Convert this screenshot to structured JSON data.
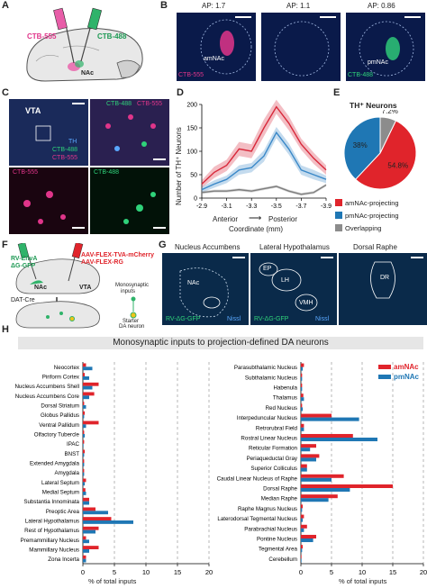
{
  "panels": {
    "A": "A",
    "B": "B",
    "C": "C",
    "D": "D",
    "E": "E",
    "F": "F",
    "G": "G",
    "H": "H"
  },
  "panelA": {
    "ctb555": "CTB-555",
    "ctb488": "CTB-488",
    "nac": "NAc"
  },
  "panelB": {
    "titles": [
      "AP: 1.7",
      "AP: 1.1",
      "AP: 0.86"
    ],
    "labels": [
      "amNAc",
      "pmNAc"
    ],
    "tags": [
      "CTB-555",
      "CTB-488"
    ]
  },
  "panelC": {
    "vta": "VTA",
    "th": "TH",
    "ctb488": "CTB-488",
    "ctb555": "CTB-555",
    "sub1": "CTB-555",
    "sub2": "CTB-488",
    "topright1": "CTB-488",
    "topright2": "CTB-555"
  },
  "panelD": {
    "ylabel": "Number of TH⁺ Neurons",
    "xlabel_line1": "Anterior",
    "xlabel_arrow": "⟶",
    "xlabel_line2": "Posterior",
    "xlabel_line3": "Coordinate (mm)"
  },
  "panelE": {
    "title": "TH⁺ Neurons",
    "legend": [
      "amNAc-projecting",
      "pmNAc-projecting",
      "Overlapping"
    ]
  },
  "panelF": {
    "left1": "RV-EnvA",
    "left2": "ΔG-GFP",
    "right1": "AAV-FLEX-TVA-mCherry",
    "right2": "AAV-FLEX-RG",
    "nac": "NAc",
    "vta": "VTA",
    "datcre": "DAT-Cre",
    "mono1": "Monosynaptic",
    "mono2": "inputs",
    "starter1": "Starter",
    "starter2": "DA neuron"
  },
  "panelG": {
    "titles": [
      "Nucleus Accumbens",
      "Lateral Hypothalamus",
      "Dorsal Raphe"
    ],
    "regions": [
      "NAc",
      "EP",
      "LH",
      "VMH",
      "DR"
    ],
    "gfp": "RV-ΔG-GFP",
    "nissl": "Nissl"
  },
  "panelH": {
    "title": "Monosynaptic inputs to projection-defined DA neurons",
    "xlabel": "% of total inputs",
    "legend": [
      "amNAc",
      "pmNAc"
    ]
  },
  "colors": {
    "amNAc": "#e0242b",
    "pmNAc": "#1f77b4",
    "overlap": "#8c8c8c"
  },
  "chart_data": [
    {
      "type": "line",
      "panel": "D",
      "ylabel": "Number of TH⁺ Neurons",
      "xlabel": "Coordinate (mm)",
      "x": [
        -2.9,
        -3.0,
        -3.1,
        -3.2,
        -3.3,
        -3.4,
        -3.5,
        -3.6,
        -3.7,
        -3.8,
        -3.9
      ],
      "xticks": [
        "-2.9",
        "-3.1",
        "-3.3",
        "-3.5",
        "-3.7",
        "-3.9"
      ],
      "yticks": [
        0,
        50,
        100,
        150,
        200
      ],
      "ylim": [
        0,
        200
      ],
      "series": [
        {
          "values": [
            30,
            55,
            70,
            105,
            100,
            150,
            195,
            160,
            115,
            85,
            60
          ],
          "color": "#d8283a",
          "band": [
            8,
            12,
            12,
            15,
            15,
            18,
            15,
            15,
            12,
            12,
            10
          ]
        },
        {
          "values": [
            18,
            30,
            40,
            60,
            65,
            90,
            140,
            105,
            60,
            50,
            40
          ],
          "color": "#3a88c8",
          "band": [
            6,
            8,
            8,
            10,
            10,
            12,
            12,
            12,
            10,
            10,
            8
          ]
        },
        {
          "values": [
            12,
            15,
            15,
            18,
            15,
            20,
            25,
            15,
            8,
            12,
            28
          ],
          "color": "#7d7d7d",
          "band": [
            3,
            3,
            3,
            3,
            3,
            3,
            3,
            3,
            3,
            3,
            3
          ]
        }
      ]
    },
    {
      "type": "pie",
      "panel": "E",
      "slices": [
        {
          "name": "amNAc-projecting",
          "value": 54.8,
          "label": "54.8%",
          "color": "#e0242b"
        },
        {
          "name": "pmNAc-projecting",
          "value": 38,
          "label": "38%",
          "color": "#1f77b4"
        },
        {
          "name": "Overlapping",
          "value": 7.2,
          "label": "7.2%",
          "color": "#8c8c8c"
        }
      ]
    },
    {
      "type": "bar",
      "panel": "H-left",
      "orientation": "horizontal",
      "xlabel": "% of total inputs",
      "xticks": [
        0,
        5,
        10,
        15,
        20
      ],
      "xlim": [
        0,
        20
      ],
      "categories": [
        "Neocortex",
        "Piriform Cortex",
        "Nucleus Accumbens Shell",
        "Nucleus Accumbens Core",
        "Dorsal Striatum",
        "Globus Pallidus",
        "Ventral Pallidum",
        "Olfactory Tubercle",
        "IPAC",
        "BNST",
        "Extended Amygdala",
        "Amygdala",
        "Lateral Septum",
        "Medial Septum",
        "Substantia Innominata",
        "Preoptic Area",
        "Lateral Hypothalamus",
        "Rest of Hypothalamus",
        "Premammillary Nucleus",
        "Mammillary Nucleus",
        "Zona Incerta"
      ],
      "series": [
        {
          "name": "amNAc",
          "values": [
            0.5,
            0.3,
            2.5,
            1.8,
            0.2,
            0.3,
            2.5,
            0.2,
            0.2,
            0.3,
            0.2,
            0.2,
            0.5,
            0.4,
            1.0,
            2.0,
            4.5,
            2.5,
            0.5,
            2.5,
            0.5
          ]
        },
        {
          "name": "pmNAc",
          "values": [
            1.5,
            1.0,
            1.5,
            1.0,
            0.5,
            0.2,
            0.5,
            0.3,
            0.1,
            0.2,
            0.2,
            0.2,
            0.3,
            0.5,
            1.0,
            4.0,
            8.0,
            2.0,
            1.0,
            1.0,
            0.5
          ]
        }
      ]
    },
    {
      "type": "bar",
      "panel": "H-right",
      "orientation": "horizontal",
      "xlabel": "% of total inputs",
      "xticks": [
        0,
        5,
        10,
        15,
        20
      ],
      "xlim": [
        0,
        20
      ],
      "categories": [
        "Parasubthalamic Nucleus",
        "Subthalamic Nucleus",
        "Habenula",
        "Thalamus",
        "Red Nucleus",
        "Interpeduncular Nucleus",
        "Retrorubral Field",
        "Rostral Linear Nucleus",
        "Reticular Formation",
        "Periaqueductal Gray",
        "Superior Colliculus",
        "Caudal Linear Nucleus of Raphe",
        "Dorsal Raphe",
        "Median Raphe",
        "Raphe Magnus Nucleus",
        "Laterodorsal Tegmental Nucleus",
        "Parabrachial Nucleus",
        "Pontine Nucleus",
        "Tegmental Area",
        "Cerebellum"
      ],
      "series": [
        {
          "name": "amNAc",
          "values": [
            0.5,
            0.2,
            0.2,
            0.4,
            0.2,
            5.0,
            0.5,
            8.5,
            2.5,
            3.0,
            1.0,
            7.0,
            15.0,
            6.0,
            0.3,
            0.5,
            1.0,
            2.5,
            0.3,
            0.1
          ]
        },
        {
          "name": "pmNAc",
          "values": [
            0.3,
            0.2,
            0.2,
            0.5,
            0.3,
            9.5,
            0.5,
            12.5,
            1.5,
            2.5,
            1.0,
            5.0,
            8.0,
            4.5,
            0.2,
            0.3,
            0.5,
            2.0,
            0.2,
            0.1
          ]
        }
      ]
    }
  ]
}
